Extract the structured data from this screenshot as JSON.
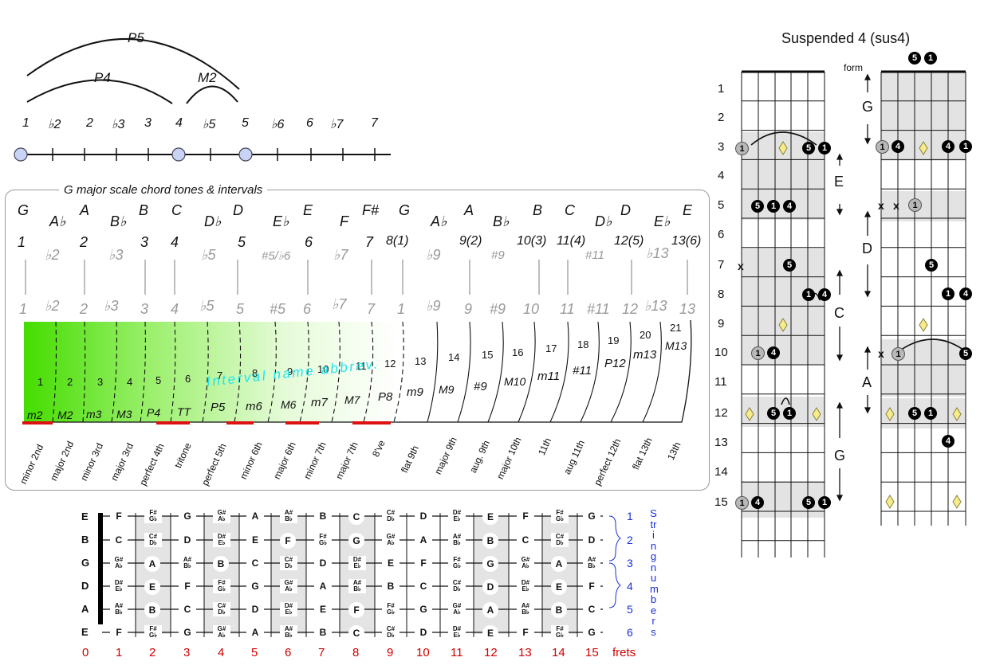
{
  "arc_labels": {
    "p5": "P5",
    "p4": "P4",
    "m2": "M2"
  },
  "scale_degrees_top": [
    "1",
    "♭2",
    "2",
    "♭3",
    "3",
    "4",
    "♭5",
    "5",
    "♭6",
    "6",
    "♭7",
    "7"
  ],
  "panel": {
    "title": "G major scale chord tones & intervals",
    "notes": [
      "G",
      "A♭",
      "A",
      "B♭",
      "B",
      "C",
      "D♭",
      "D",
      "E♭",
      "E",
      "F",
      "F#",
      "G",
      "A♭",
      "A",
      "B♭",
      "B",
      "C",
      "D♭",
      "D",
      "E♭",
      "E"
    ],
    "major_degrees": [
      "1",
      "2",
      "3",
      "4",
      "5",
      "6",
      "7",
      "8(1)",
      "9(2)",
      "10(3)",
      "11(4)",
      "12(5)",
      "13(6)"
    ],
    "altered_degrees": [
      "♭2",
      "♭3",
      "♭5",
      "#5/♭6",
      "♭7",
      "♭9",
      "#9",
      "#11",
      "♭13"
    ],
    "lower_degrees": [
      "1",
      "♭2",
      "2",
      "♭3",
      "3",
      "4",
      "♭5",
      "5",
      "#5",
      "6",
      "♭7",
      "7",
      "1",
      "♭9",
      "9",
      "#9",
      "10",
      "11",
      "#11",
      "12",
      "♭13",
      "13"
    ],
    "semitones": [
      "1",
      "2",
      "3",
      "4",
      "5",
      "6",
      "7",
      "8",
      "9",
      "10",
      "11",
      "12",
      "13",
      "14",
      "15",
      "16",
      "17",
      "18",
      "19",
      "20",
      "21"
    ],
    "abbrevs": [
      "m2",
      "M2",
      "m3",
      "M3",
      "P4",
      "TT",
      "P5",
      "m6",
      "M6",
      "m7",
      "M7",
      "P8",
      "m9",
      "M9",
      "#9",
      "M10",
      "m11",
      "#11",
      "P12",
      "m13",
      "M13"
    ],
    "overlay_label": "Interval name abbrev.",
    "interval_names": [
      "minor 2nd",
      "major 2nd",
      "minor 3rd",
      "major 3rd",
      "perfect 4th",
      "tritone",
      "perfect 5th",
      "minor 6th",
      "major 6th",
      "minor 7th",
      "major 7th",
      "8've",
      "flat 9th",
      "major 9th",
      "aug. 9th",
      "major 10th",
      "11th",
      "aug 11th",
      "perfect 12th",
      "flat 13th",
      "13th"
    ]
  },
  "fretboard": {
    "open_strings": [
      "E",
      "B",
      "G",
      "D",
      "A",
      "E"
    ],
    "rows": [
      [
        "F",
        "F#/G♭",
        "G",
        "G#/A♭",
        "A",
        "A#/B♭",
        "B",
        "C",
        "C#/D♭",
        "D",
        "D#/E♭",
        "E",
        "F",
        "F#/G♭",
        "G"
      ],
      [
        "C",
        "C#/D♭",
        "D",
        "D#/E♭",
        "E",
        "F",
        "F#/G♭",
        "G",
        "G#/A♭",
        "A",
        "A#/B♭",
        "B",
        "C",
        "C#/D♭",
        "D"
      ],
      [
        "G#/A♭",
        "A",
        "A#/B♭",
        "B",
        "C",
        "C#/D♭",
        "D",
        "D#/E♭",
        "E",
        "F",
        "F#/G♭",
        "G",
        "G#/A♭",
        "A",
        "A#/B♭"
      ],
      [
        "D#/E♭",
        "E",
        "F",
        "F#/G♭",
        "G",
        "G#/A♭",
        "A",
        "A#/B♭",
        "B",
        "C",
        "C#/D♭",
        "D",
        "D#/E♭",
        "E",
        "F"
      ],
      [
        "A#/B♭",
        "B",
        "C",
        "C#/D♭",
        "D",
        "D#/E♭",
        "E",
        "F",
        "F#/G♭",
        "G",
        "G#/A♭",
        "A",
        "A#/B♭",
        "B",
        "C"
      ],
      [
        "F",
        "F#/G♭",
        "G",
        "G#/A♭",
        "A",
        "A#/B♭",
        "B",
        "C",
        "C#/D♭",
        "D",
        "D#/E♭",
        "E",
        "F",
        "F#/G♭",
        "G"
      ]
    ],
    "string_numbers": [
      "1",
      "2",
      "3",
      "4",
      "5",
      "6"
    ],
    "string_numbers_label": "String numbers",
    "fret_numbers": [
      "0",
      "1",
      "2",
      "3",
      "4",
      "5",
      "6",
      "7",
      "8",
      "9",
      "10",
      "11",
      "12",
      "13",
      "14",
      "15"
    ],
    "frets_label": "frets"
  },
  "sus4": {
    "title": "Suspended 4 (sus4)",
    "form_label": "form",
    "fret_numbers": [
      "1",
      "2",
      "3",
      "4",
      "5",
      "6",
      "7",
      "8",
      "9",
      "10",
      "11",
      "12",
      "13",
      "14",
      "15"
    ],
    "shapes_left": [
      "E",
      "C",
      "G"
    ],
    "shapes_right": [
      "G",
      "D",
      "A"
    ],
    "mute": "x",
    "dot_labels": {
      "one": "1",
      "four": "4",
      "five": "5"
    }
  }
}
